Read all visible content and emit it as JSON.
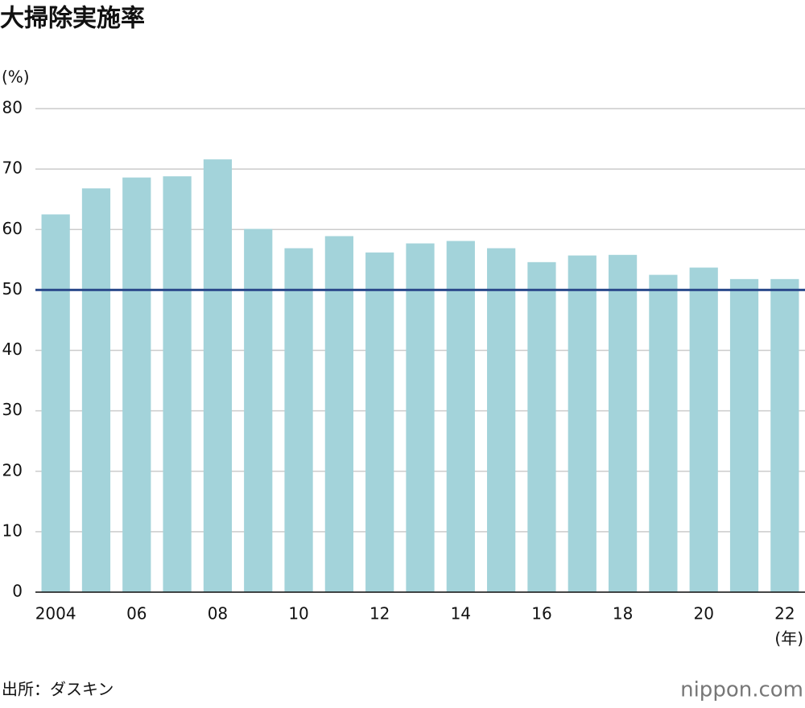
{
  "chart_data": {
    "type": "bar",
    "title": "大掃除実施率",
    "y_unit": "(%)",
    "x_unit": "(年)",
    "categories": [
      "2004",
      null,
      "06",
      null,
      "08",
      null,
      "10",
      null,
      "12",
      null,
      "14",
      null,
      "16",
      null,
      "18",
      null,
      "20",
      null,
      "22"
    ],
    "values": [
      62.5,
      66.8,
      68.6,
      68.8,
      71.6,
      60.1,
      56.9,
      58.9,
      56.2,
      57.7,
      58.1,
      56.9,
      54.6,
      55.7,
      55.8,
      52.5,
      53.7,
      51.8,
      51.8
    ],
    "color": "#a3d3da",
    "reference_line": 50,
    "reference_color": "#2b4a8b",
    "ylim": [
      0,
      80
    ],
    "yticks": [
      0,
      10,
      20,
      30,
      40,
      50,
      60,
      70,
      80
    ],
    "grid": true,
    "source": "出所：ダスキン",
    "logo": "nippon.com"
  }
}
